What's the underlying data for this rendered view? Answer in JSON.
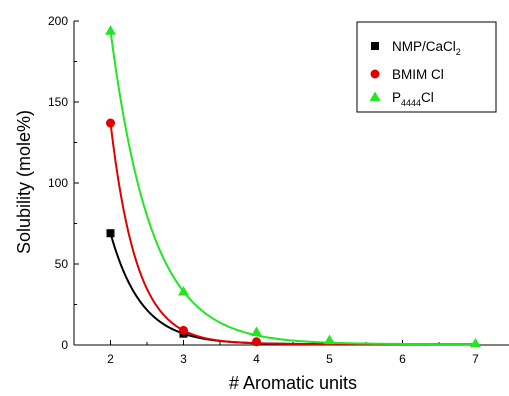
{
  "chart_data": {
    "type": "scatter",
    "xlabel": "# Aromatic units",
    "ylabel": "Solubility (mole%)",
    "xlim": [
      1.5,
      7.5
    ],
    "ylim": [
      0,
      200
    ],
    "x_ticks": [
      "2",
      "3",
      "4",
      "5",
      "6",
      "7"
    ],
    "y_ticks": [
      "0",
      "50",
      "100",
      "150",
      "200"
    ],
    "grid": false,
    "legend_position": "top-right",
    "series": [
      {
        "name": "NMP/CaCl2",
        "legend_main": "NMP/CaCl",
        "legend_sub": "2",
        "marker": "square",
        "color": "#000000",
        "x": [
          2,
          3
        ],
        "y": [
          69,
          7
        ]
      },
      {
        "name": "BMIM Cl",
        "legend_main": "BMIM Cl",
        "legend_sub": "",
        "marker": "circle",
        "color": "#e00000",
        "x": [
          2,
          3,
          4
        ],
        "y": [
          137,
          9,
          2
        ]
      },
      {
        "name": "P4444 Cl",
        "legend_main": "P",
        "legend_sub": "4444",
        "legend_tail": "Cl",
        "marker": "triangle",
        "color": "#22e622",
        "x": [
          2,
          3,
          4,
          5,
          7
        ],
        "y": [
          194,
          33,
          8,
          3,
          1
        ]
      }
    ]
  }
}
